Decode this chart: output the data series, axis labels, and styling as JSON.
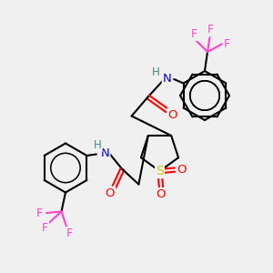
{
  "background_color": "#f0f0f0",
  "atom_colors": {
    "C": "#000000",
    "H": "#3a8a8a",
    "N": "#0000e0",
    "O": "#ff0000",
    "S": "#cccc00",
    "F": "#ff44cc"
  },
  "bond_color": "#000000",
  "bond_width": 1.5,
  "figsize": [
    3.0,
    3.0
  ],
  "dpi": 100,
  "xlim": [
    0,
    10
  ],
  "ylim": [
    0,
    10
  ]
}
